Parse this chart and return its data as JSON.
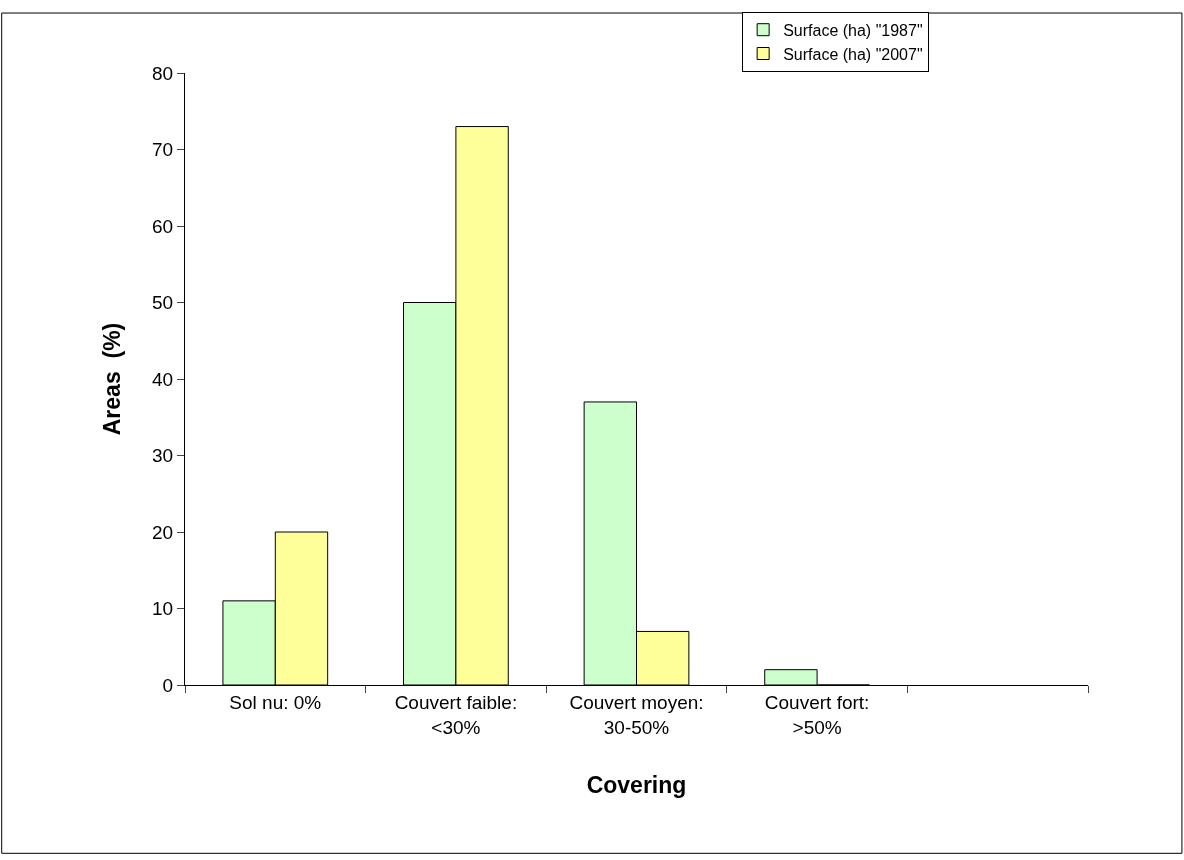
{
  "chart_data": {
    "type": "bar",
    "xlabel": "Covering",
    "ylabel": "Areas  (%)",
    "categories": [
      "Sol nu: 0%",
      "Couvert faible: <30%",
      "Couvert moyen: 30-50%",
      "Couvert fort: >50%",
      null
    ],
    "series": [
      {
        "name": "Surface (ha) \"1987\"",
        "color": "#ccffcc",
        "values": [
          11,
          50,
          37,
          2,
          null
        ]
      },
      {
        "name": "Surface (ha) \"2007\"",
        "color": "#ffff99",
        "values": [
          20,
          73,
          7,
          0,
          null
        ]
      }
    ],
    "ylim": [
      0,
      80
    ],
    "yticks": [
      0,
      10,
      20,
      30,
      40,
      50,
      60,
      70,
      80
    ],
    "grid": false,
    "legend": "top right"
  }
}
